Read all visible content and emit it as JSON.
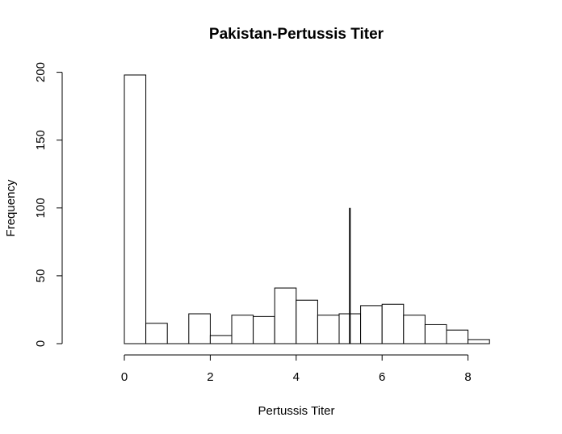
{
  "chart_data": {
    "type": "bar",
    "title": "Pakistan-Pertussis Titer",
    "xlabel": "Pertussis Titer",
    "ylabel": "Frequency",
    "bin_width": 0.5,
    "bin_edges": [
      0,
      0.5,
      1,
      1.5,
      2,
      2.5,
      3,
      3.5,
      4,
      4.5,
      5,
      5.5,
      6,
      6.5,
      7,
      7.5,
      8,
      8.5
    ],
    "values": [
      198,
      15,
      0,
      22,
      6,
      21,
      20,
      41,
      32,
      21,
      22,
      28,
      29,
      21,
      14,
      10,
      3
    ],
    "xlim": [
      0,
      8.5
    ],
    "ylim": [
      0,
      200
    ],
    "x_ticks": [
      0,
      2,
      4,
      6,
      8
    ],
    "y_ticks": [
      0,
      50,
      100,
      150,
      200
    ],
    "reference_line": {
      "x": 5.25,
      "height": 100
    },
    "grid": false,
    "legend": "none"
  }
}
